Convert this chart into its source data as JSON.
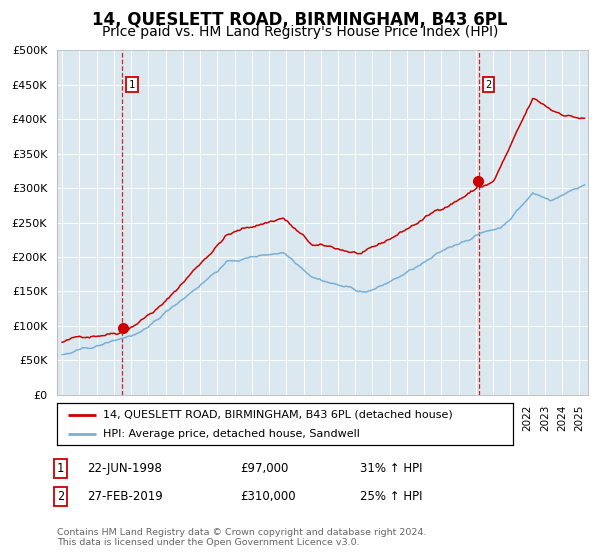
{
  "title": "14, QUESLETT ROAD, BIRMINGHAM, B43 6PL",
  "subtitle": "Price paid vs. HM Land Registry's House Price Index (HPI)",
  "xmin": 1994.7,
  "xmax": 2025.5,
  "ymin": 0,
  "ymax": 500000,
  "yticks": [
    0,
    50000,
    100000,
    150000,
    200000,
    250000,
    300000,
    350000,
    400000,
    450000,
    500000
  ],
  "red_color": "#cc0000",
  "blue_color": "#7ab0d4",
  "bg_color": "#dce8f0",
  "grid_color": "#ffffff",
  "vline_color": "#cc0000",
  "sale1_date": 1998.47,
  "sale1_price": 97000,
  "sale2_date": 2019.15,
  "sale2_price": 310000,
  "sale1_date_str": "22-JUN-1998",
  "sale2_date_str": "27-FEB-2019",
  "sale1_hpi_pct": "31% ↑ HPI",
  "sale2_hpi_pct": "25% ↑ HPI",
  "legend_red": "14, QUESLETT ROAD, BIRMINGHAM, B43 6PL (detached house)",
  "legend_blue": "HPI: Average price, detached house, Sandwell",
  "footer": "Contains HM Land Registry data © Crown copyright and database right 2024.\nThis data is licensed under the Open Government Licence v3.0.",
  "title_fontsize": 12,
  "subtitle_fontsize": 10
}
